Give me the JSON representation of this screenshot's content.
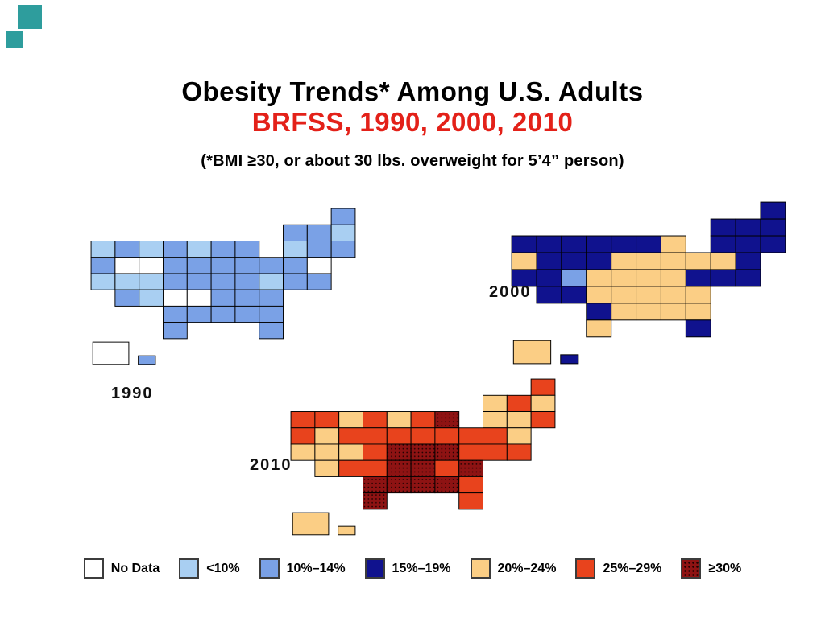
{
  "slide": {
    "title": "Obesity Trends* Among U.S. Adults",
    "subtitle": "BRFSS, 1990, 2000, 2010",
    "note": "(*BMI ≥30, or about 30 lbs. overweight for 5’4” person)",
    "title_color": "#000000",
    "subtitle_color": "#E32119",
    "decor_color": "#2E9D9D",
    "background_color": "#FFFFFF"
  },
  "maps": [
    {
      "year": "1990"
    },
    {
      "year": "2000"
    },
    {
      "year": "2010"
    }
  ],
  "legend": {
    "items": [
      {
        "key": "nodata",
        "label": "No Data",
        "color": "#FFFFFF",
        "pattern": "none"
      },
      {
        "key": "lt10",
        "label": "<10%",
        "color": "#A9CFF2",
        "pattern": "none"
      },
      {
        "key": "10-14",
        "label": "10%–14%",
        "color": "#7AA1E6",
        "pattern": "none"
      },
      {
        "key": "15-19",
        "label": "15%–19%",
        "color": "#10128E",
        "pattern": "none"
      },
      {
        "key": "20-24",
        "label": "20%–24%",
        "color": "#FBCE85",
        "pattern": "none"
      },
      {
        "key": "25-29",
        "label": "25%–29%",
        "color": "#E8431D",
        "pattern": "none"
      },
      {
        "key": "ge30",
        "label": "≥30%",
        "color": "#8E1313",
        "pattern": "dots"
      }
    ]
  },
  "chart_data": {
    "type": "choropleth",
    "title": "Obesity Trends* Among U.S. Adults, BRFSS, 1990, 2000, 2010",
    "years": [
      "1990",
      "2000",
      "2010"
    ],
    "categories": [
      "No Data",
      "<10%",
      "10%–14%",
      "15%–19%",
      "20%–24%",
      "25%–29%",
      "≥30%"
    ],
    "category_keys": [
      "nodata",
      "lt10",
      "10-14",
      "15-19",
      "20-24",
      "25-29",
      "ge30"
    ],
    "state_values": {
      "AL": [
        "10-14",
        "20-24",
        "ge30"
      ],
      "AK": [
        "nodata",
        "20-24",
        "20-24"
      ],
      "AZ": [
        "10-14",
        "15-19",
        "20-24"
      ],
      "AR": [
        "nodata",
        "20-24",
        "ge30"
      ],
      "CA": [
        "lt10",
        "15-19",
        "20-24"
      ],
      "CO": [
        "lt10",
        "10-14",
        "20-24"
      ],
      "CT": [
        "10-14",
        "15-19",
        "20-24"
      ],
      "DE": [
        "10-14",
        "15-19",
        "25-29"
      ],
      "FL": [
        "10-14",
        "15-19",
        "25-29"
      ],
      "GA": [
        "10-14",
        "20-24",
        "25-29"
      ],
      "HI": [
        "10-14",
        "15-19",
        "20-24"
      ],
      "ID": [
        "10-14",
        "15-19",
        "25-29"
      ],
      "IL": [
        "10-14",
        "20-24",
        "25-29"
      ],
      "IN": [
        "10-14",
        "20-24",
        "25-29"
      ],
      "IA": [
        "10-14",
        "20-24",
        "25-29"
      ],
      "KS": [
        "nodata",
        "20-24",
        "25-29"
      ],
      "KY": [
        "10-14",
        "20-24",
        "ge30"
      ],
      "LA": [
        "10-14",
        "20-24",
        "ge30"
      ],
      "ME": [
        "10-14",
        "15-19",
        "25-29"
      ],
      "MD": [
        "10-14",
        "15-19",
        "25-29"
      ],
      "MA": [
        "lt10",
        "15-19",
        "20-24"
      ],
      "MI": [
        "10-14",
        "20-24",
        "ge30"
      ],
      "MN": [
        "lt10",
        "15-19",
        "20-24"
      ],
      "MS": [
        "10-14",
        "20-24",
        "ge30"
      ],
      "MO": [
        "10-14",
        "20-24",
        "ge30"
      ],
      "MT": [
        "lt10",
        "15-19",
        "20-24"
      ],
      "NE": [
        "10-14",
        "20-24",
        "25-29"
      ],
      "NV": [
        "nodata",
        "15-19",
        "20-24"
      ],
      "NH": [
        "10-14",
        "15-19",
        "25-29"
      ],
      "NJ": [
        "nodata",
        "15-19",
        "20-24"
      ],
      "NM": [
        "lt10",
        "15-19",
        "25-29"
      ],
      "NY": [
        "lt10",
        "15-19",
        "20-24"
      ],
      "NC": [
        "10-14",
        "20-24",
        "25-29"
      ],
      "ND": [
        "10-14",
        "15-19",
        "25-29"
      ],
      "OH": [
        "10-14",
        "20-24",
        "25-29"
      ],
      "OK": [
        "10-14",
        "15-19",
        "ge30"
      ],
      "OR": [
        "10-14",
        "20-24",
        "25-29"
      ],
      "PA": [
        "10-14",
        "20-24",
        "25-29"
      ],
      "RI": [
        "10-14",
        "15-19",
        "25-29"
      ],
      "SC": [
        "10-14",
        "20-24",
        "ge30"
      ],
      "SD": [
        "10-14",
        "15-19",
        "25-29"
      ],
      "TN": [
        "10-14",
        "20-24",
        "ge30"
      ],
      "TX": [
        "10-14",
        "20-24",
        "ge30"
      ],
      "UT": [
        "lt10",
        "15-19",
        "20-24"
      ],
      "VT": [
        "10-14",
        "15-19",
        "20-24"
      ],
      "VA": [
        "lt10",
        "15-19",
        "25-29"
      ],
      "WA": [
        "lt10",
        "15-19",
        "25-29"
      ],
      "WV": [
        "10-14",
        "20-24",
        "ge30"
      ],
      "WI": [
        "10-14",
        "15-19",
        "25-29"
      ],
      "WY": [
        "nodata",
        "15-19",
        "25-29"
      ]
    }
  }
}
